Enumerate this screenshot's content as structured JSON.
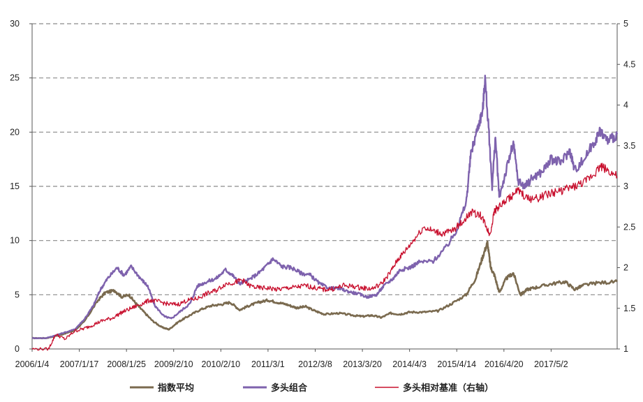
{
  "chart_data": {
    "type": "line",
    "title": "",
    "xlabel": "",
    "ylabel_left": "",
    "ylabel_right": "",
    "x_tick_labels": [
      "2006/1/4",
      "2007/1/17",
      "2008/1/25",
      "2009/2/10",
      "2010/2/10",
      "2011/3/1",
      "2012/3/8",
      "2013/3/20",
      "2014/4/3",
      "2015/4/14",
      "2016/4/20",
      "2017/5/2"
    ],
    "x_range": [
      0,
      12.4
    ],
    "y_left": {
      "ticks": [
        "0",
        "5",
        "10",
        "15",
        "20",
        "25",
        "30"
      ],
      "range": [
        0,
        30
      ]
    },
    "y_right": {
      "ticks": [
        "1",
        "1.5",
        "2",
        "2.5",
        "3",
        "3.5",
        "4",
        "4.5",
        "5"
      ],
      "range": [
        1,
        5
      ]
    },
    "grid": "horizontal-dashed",
    "legend_position": "bottom",
    "series": [
      {
        "name": "指数平均",
        "axis": "left",
        "color": "#7a6a4f",
        "points": [
          [
            0,
            1.0
          ],
          [
            0.3,
            1.0
          ],
          [
            0.6,
            1.3
          ],
          [
            0.9,
            1.7
          ],
          [
            1.1,
            2.5
          ],
          [
            1.4,
            4.5
          ],
          [
            1.55,
            5.2
          ],
          [
            1.75,
            5.4
          ],
          [
            1.9,
            4.8
          ],
          [
            2.05,
            5.0
          ],
          [
            2.2,
            4.2
          ],
          [
            2.35,
            3.5
          ],
          [
            2.55,
            2.6
          ],
          [
            2.75,
            2.0
          ],
          [
            2.9,
            1.8
          ],
          [
            3.1,
            2.5
          ],
          [
            3.3,
            3.0
          ],
          [
            3.55,
            3.6
          ],
          [
            3.8,
            4.0
          ],
          [
            4.0,
            4.1
          ],
          [
            4.2,
            4.3
          ],
          [
            4.4,
            3.6
          ],
          [
            4.6,
            4.0
          ],
          [
            4.8,
            4.3
          ],
          [
            5.0,
            4.5
          ],
          [
            5.2,
            4.3
          ],
          [
            5.4,
            4.1
          ],
          [
            5.6,
            3.8
          ],
          [
            5.8,
            3.9
          ],
          [
            6.0,
            3.5
          ],
          [
            6.2,
            3.2
          ],
          [
            6.5,
            3.3
          ],
          [
            6.8,
            3.1
          ],
          [
            7.0,
            3.0
          ],
          [
            7.2,
            3.1
          ],
          [
            7.4,
            2.9
          ],
          [
            7.6,
            3.3
          ],
          [
            7.8,
            3.2
          ],
          [
            8.0,
            3.4
          ],
          [
            8.3,
            3.4
          ],
          [
            8.6,
            3.5
          ],
          [
            8.9,
            4.2
          ],
          [
            9.2,
            5.0
          ],
          [
            9.4,
            6.5
          ],
          [
            9.55,
            8.5
          ],
          [
            9.65,
            9.8
          ],
          [
            9.72,
            7.5
          ],
          [
            9.8,
            6.8
          ],
          [
            9.9,
            5.2
          ],
          [
            10.05,
            6.5
          ],
          [
            10.2,
            7.0
          ],
          [
            10.35,
            5.0
          ],
          [
            10.5,
            5.5
          ],
          [
            10.7,
            5.7
          ],
          [
            11.0,
            6.0
          ],
          [
            11.3,
            6.2
          ],
          [
            11.5,
            5.5
          ],
          [
            11.7,
            5.9
          ],
          [
            12.0,
            6.1
          ],
          [
            12.4,
            6.2
          ]
        ]
      },
      {
        "name": "多头组合",
        "axis": "left",
        "color": "#7e62ad",
        "points": [
          [
            0,
            1.0
          ],
          [
            0.3,
            1.0
          ],
          [
            0.6,
            1.4
          ],
          [
            0.9,
            1.8
          ],
          [
            1.1,
            2.7
          ],
          [
            1.3,
            4.0
          ],
          [
            1.45,
            5.5
          ],
          [
            1.6,
            6.5
          ],
          [
            1.8,
            7.5
          ],
          [
            1.95,
            6.8
          ],
          [
            2.1,
            7.6
          ],
          [
            2.3,
            6.5
          ],
          [
            2.45,
            5.8
          ],
          [
            2.6,
            4.0
          ],
          [
            2.8,
            3.0
          ],
          [
            2.95,
            2.8
          ],
          [
            3.15,
            3.5
          ],
          [
            3.35,
            4.2
          ],
          [
            3.5,
            5.8
          ],
          [
            3.7,
            6.2
          ],
          [
            3.9,
            6.5
          ],
          [
            4.1,
            7.3
          ],
          [
            4.25,
            6.8
          ],
          [
            4.4,
            6.0
          ],
          [
            4.6,
            6.4
          ],
          [
            4.8,
            7.0
          ],
          [
            5.0,
            7.8
          ],
          [
            5.1,
            8.3
          ],
          [
            5.3,
            7.6
          ],
          [
            5.5,
            7.5
          ],
          [
            5.7,
            7.0
          ],
          [
            5.9,
            6.8
          ],
          [
            6.1,
            6.0
          ],
          [
            6.3,
            5.6
          ],
          [
            6.5,
            5.6
          ],
          [
            6.7,
            5.3
          ],
          [
            6.9,
            5.1
          ],
          [
            7.1,
            4.8
          ],
          [
            7.3,
            5.0
          ],
          [
            7.45,
            5.8
          ],
          [
            7.65,
            6.5
          ],
          [
            7.8,
            7.3
          ],
          [
            8.0,
            7.5
          ],
          [
            8.2,
            8.0
          ],
          [
            8.5,
            8.1
          ],
          [
            8.8,
            9.5
          ],
          [
            9.0,
            11.0
          ],
          [
            9.2,
            13.5
          ],
          [
            9.3,
            18.0
          ],
          [
            9.45,
            20.5
          ],
          [
            9.55,
            22.0
          ],
          [
            9.6,
            25.0
          ],
          [
            9.68,
            20.0
          ],
          [
            9.75,
            15.0
          ],
          [
            9.82,
            19.5
          ],
          [
            9.9,
            14.0
          ],
          [
            10.05,
            16.5
          ],
          [
            10.2,
            19.0
          ],
          [
            10.3,
            15.5
          ],
          [
            10.45,
            15.0
          ],
          [
            10.6,
            15.8
          ],
          [
            10.8,
            16.3
          ],
          [
            11.0,
            17.5
          ],
          [
            11.2,
            17.2
          ],
          [
            11.4,
            18.3
          ],
          [
            11.5,
            16.5
          ],
          [
            11.7,
            17.5
          ],
          [
            11.9,
            19.0
          ],
          [
            12.05,
            20.1
          ],
          [
            12.2,
            19.2
          ],
          [
            12.4,
            19.8
          ]
        ]
      },
      {
        "name": "多头相对基准（右轴）",
        "axis": "right",
        "color": "#c8102e",
        "points": [
          [
            0,
            1.0
          ],
          [
            0.35,
            1.0
          ],
          [
            0.5,
            1.18
          ],
          [
            0.7,
            1.12
          ],
          [
            0.9,
            1.22
          ],
          [
            1.1,
            1.25
          ],
          [
            1.3,
            1.3
          ],
          [
            1.5,
            1.35
          ],
          [
            1.7,
            1.38
          ],
          [
            1.9,
            1.45
          ],
          [
            2.1,
            1.5
          ],
          [
            2.3,
            1.55
          ],
          [
            2.5,
            1.6
          ],
          [
            2.7,
            1.58
          ],
          [
            2.9,
            1.55
          ],
          [
            3.1,
            1.55
          ],
          [
            3.3,
            1.6
          ],
          [
            3.5,
            1.62
          ],
          [
            3.7,
            1.68
          ],
          [
            3.9,
            1.72
          ],
          [
            4.1,
            1.8
          ],
          [
            4.3,
            1.82
          ],
          [
            4.45,
            1.85
          ],
          [
            4.6,
            1.78
          ],
          [
            4.8,
            1.75
          ],
          [
            5.0,
            1.75
          ],
          [
            5.2,
            1.73
          ],
          [
            5.4,
            1.75
          ],
          [
            5.6,
            1.76
          ],
          [
            5.8,
            1.78
          ],
          [
            6.0,
            1.75
          ],
          [
            6.2,
            1.73
          ],
          [
            6.4,
            1.74
          ],
          [
            6.6,
            1.78
          ],
          [
            6.8,
            1.77
          ],
          [
            7.0,
            1.75
          ],
          [
            7.2,
            1.74
          ],
          [
            7.4,
            1.8
          ],
          [
            7.6,
            1.95
          ],
          [
            7.75,
            2.1
          ],
          [
            7.9,
            2.2
          ],
          [
            8.1,
            2.35
          ],
          [
            8.3,
            2.5
          ],
          [
            8.5,
            2.45
          ],
          [
            8.7,
            2.42
          ],
          [
            8.9,
            2.45
          ],
          [
            9.1,
            2.55
          ],
          [
            9.3,
            2.68
          ],
          [
            9.5,
            2.65
          ],
          [
            9.6,
            2.55
          ],
          [
            9.7,
            2.4
          ],
          [
            9.8,
            2.7
          ],
          [
            9.9,
            2.75
          ],
          [
            10.1,
            2.85
          ],
          [
            10.3,
            2.95
          ],
          [
            10.5,
            2.85
          ],
          [
            10.7,
            2.85
          ],
          [
            10.9,
            2.9
          ],
          [
            11.1,
            2.93
          ],
          [
            11.3,
            2.96
          ],
          [
            11.5,
            3.0
          ],
          [
            11.7,
            3.05
          ],
          [
            11.9,
            3.15
          ],
          [
            12.05,
            3.25
          ],
          [
            12.2,
            3.2
          ],
          [
            12.4,
            3.12
          ]
        ]
      }
    ]
  }
}
